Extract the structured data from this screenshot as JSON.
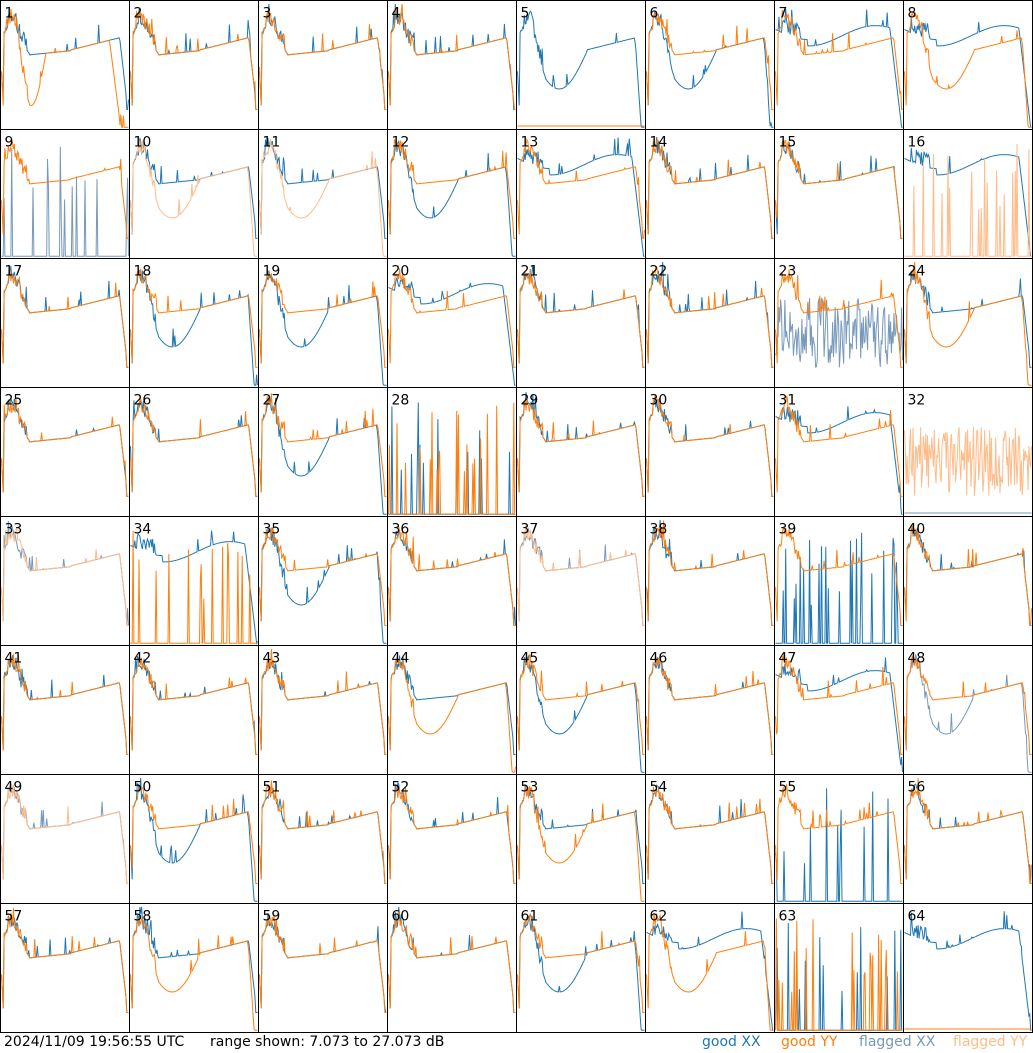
{
  "footer": {
    "timestamp": "2024/11/09 19:56:55 UTC",
    "range": "range shown: 7.073 to 27.073 dB",
    "legend": {
      "good_xx": "good XX",
      "good_yy": "good YY",
      "flagged_xx": "flagged XX",
      "flagged_yy": "flagged YY"
    }
  },
  "colors": {
    "good_xx": "#1f77b4",
    "good_yy": "#ff7f0e",
    "flagged_xx": "#7799bb",
    "flagged_yy": "#ffbb88"
  },
  "chart_data": {
    "type": "line",
    "grid": "8x8 small multiples",
    "range_db": [
      7.073,
      27.073
    ],
    "panels": [
      {
        "id": "1",
        "xx": "good",
        "yy": "good",
        "xx_shape": "normal",
        "yy_shape": "drop"
      },
      {
        "id": "2",
        "xx": "good",
        "yy": "good",
        "xx_shape": "normal",
        "yy_shape": "normal"
      },
      {
        "id": "3",
        "xx": "good",
        "yy": "good",
        "xx_shape": "normal",
        "yy_shape": "normal"
      },
      {
        "id": "4",
        "xx": "good",
        "yy": "good",
        "xx_shape": "normal",
        "yy_shape": "normal"
      },
      {
        "id": "5",
        "xx": "good",
        "yy": "good",
        "xx_shape": "dip",
        "yy_shape": "flat"
      },
      {
        "id": "6",
        "xx": "good",
        "yy": "good",
        "xx_shape": "dip",
        "yy_shape": "normal"
      },
      {
        "id": "7",
        "xx": "good",
        "yy": "good",
        "xx_shape": "high",
        "yy_shape": "normal"
      },
      {
        "id": "8",
        "xx": "good",
        "yy": "good",
        "xx_shape": "high",
        "yy_shape": "dip"
      },
      {
        "id": "9",
        "xx": "flagged",
        "yy": "good",
        "xx_shape": "spiky",
        "yy_shape": "normal"
      },
      {
        "id": "10",
        "xx": "good",
        "yy": "flagged",
        "xx_shape": "normal",
        "yy_shape": "dip"
      },
      {
        "id": "11",
        "xx": "good",
        "yy": "flagged",
        "xx_shape": "normal",
        "yy_shape": "dip"
      },
      {
        "id": "12",
        "xx": "good",
        "yy": "good",
        "xx_shape": "dip",
        "yy_shape": "normal"
      },
      {
        "id": "13",
        "xx": "good",
        "yy": "good",
        "xx_shape": "high",
        "yy_shape": "normal"
      },
      {
        "id": "14",
        "xx": "good",
        "yy": "good",
        "xx_shape": "normal",
        "yy_shape": "normal"
      },
      {
        "id": "15",
        "xx": "good",
        "yy": "good",
        "xx_shape": "normal",
        "yy_shape": "normal"
      },
      {
        "id": "16",
        "xx": "good",
        "yy": "flagged",
        "xx_shape": "high",
        "yy_shape": "spiky"
      },
      {
        "id": "17",
        "xx": "good",
        "yy": "good",
        "xx_shape": "normal",
        "yy_shape": "normal"
      },
      {
        "id": "18",
        "xx": "good",
        "yy": "good",
        "xx_shape": "dip",
        "yy_shape": "normal"
      },
      {
        "id": "19",
        "xx": "good",
        "yy": "good",
        "xx_shape": "dip",
        "yy_shape": "normal"
      },
      {
        "id": "20",
        "xx": "good",
        "yy": "good",
        "xx_shape": "high",
        "yy_shape": "normal"
      },
      {
        "id": "21",
        "xx": "good",
        "yy": "good",
        "xx_shape": "normal",
        "yy_shape": "normal"
      },
      {
        "id": "22",
        "xx": "good",
        "yy": "good",
        "xx_shape": "normal",
        "yy_shape": "normal"
      },
      {
        "id": "23",
        "xx": "flagged",
        "yy": "good",
        "xx_shape": "noisy",
        "yy_shape": "normal"
      },
      {
        "id": "24",
        "xx": "good",
        "yy": "good",
        "xx_shape": "normal",
        "yy_shape": "dip"
      },
      {
        "id": "25",
        "xx": "good",
        "yy": "good",
        "xx_shape": "normal",
        "yy_shape": "normal"
      },
      {
        "id": "26",
        "xx": "good",
        "yy": "good",
        "xx_shape": "normal",
        "yy_shape": "normal"
      },
      {
        "id": "27",
        "xx": "good",
        "yy": "good",
        "xx_shape": "dip",
        "yy_shape": "normal"
      },
      {
        "id": "28",
        "xx": "good",
        "yy": "good",
        "xx_shape": "spiky",
        "yy_shape": "spiky"
      },
      {
        "id": "29",
        "xx": "good",
        "yy": "good",
        "xx_shape": "normal",
        "yy_shape": "normal"
      },
      {
        "id": "30",
        "xx": "good",
        "yy": "good",
        "xx_shape": "normal",
        "yy_shape": "normal"
      },
      {
        "id": "31",
        "xx": "good",
        "yy": "good",
        "xx_shape": "high",
        "yy_shape": "normal"
      },
      {
        "id": "32",
        "xx": "flagged",
        "yy": "flagged",
        "xx_shape": "flat",
        "yy_shape": "noisy"
      },
      {
        "id": "33",
        "xx": "flagged",
        "yy": "flagged",
        "xx_shape": "normal",
        "yy_shape": "normal"
      },
      {
        "id": "34",
        "xx": "good",
        "yy": "good",
        "xx_shape": "high",
        "yy_shape": "spiky"
      },
      {
        "id": "35",
        "xx": "good",
        "yy": "good",
        "xx_shape": "dip",
        "yy_shape": "normal"
      },
      {
        "id": "36",
        "xx": "good",
        "yy": "good",
        "xx_shape": "normal",
        "yy_shape": "normal"
      },
      {
        "id": "37",
        "xx": "flagged",
        "yy": "flagged",
        "xx_shape": "normal",
        "yy_shape": "normal"
      },
      {
        "id": "38",
        "xx": "good",
        "yy": "good",
        "xx_shape": "normal",
        "yy_shape": "normal"
      },
      {
        "id": "39",
        "xx": "good",
        "yy": "good",
        "xx_shape": "spiky",
        "yy_shape": "normal"
      },
      {
        "id": "40",
        "xx": "good",
        "yy": "good",
        "xx_shape": "normal",
        "yy_shape": "normal"
      },
      {
        "id": "41",
        "xx": "good",
        "yy": "good",
        "xx_shape": "normal",
        "yy_shape": "normal"
      },
      {
        "id": "42",
        "xx": "good",
        "yy": "good",
        "xx_shape": "normal",
        "yy_shape": "normal"
      },
      {
        "id": "43",
        "xx": "good",
        "yy": "good",
        "xx_shape": "normal",
        "yy_shape": "normal"
      },
      {
        "id": "44",
        "xx": "good",
        "yy": "good",
        "xx_shape": "normal",
        "yy_shape": "dip"
      },
      {
        "id": "45",
        "xx": "good",
        "yy": "good",
        "xx_shape": "dip",
        "yy_shape": "normal"
      },
      {
        "id": "46",
        "xx": "good",
        "yy": "good",
        "xx_shape": "normal",
        "yy_shape": "normal"
      },
      {
        "id": "47",
        "xx": "good",
        "yy": "good",
        "xx_shape": "high",
        "yy_shape": "normal"
      },
      {
        "id": "48",
        "xx": "flagged",
        "yy": "good",
        "xx_shape": "dip",
        "yy_shape": "normal"
      },
      {
        "id": "49",
        "xx": "flagged",
        "yy": "flagged",
        "xx_shape": "normal",
        "yy_shape": "normal"
      },
      {
        "id": "50",
        "xx": "good",
        "yy": "good",
        "xx_shape": "dip",
        "yy_shape": "normal"
      },
      {
        "id": "51",
        "xx": "good",
        "yy": "good",
        "xx_shape": "normal",
        "yy_shape": "normal"
      },
      {
        "id": "52",
        "xx": "good",
        "yy": "good",
        "xx_shape": "normal",
        "yy_shape": "normal"
      },
      {
        "id": "53",
        "xx": "good",
        "yy": "good",
        "xx_shape": "normal",
        "yy_shape": "dip"
      },
      {
        "id": "54",
        "xx": "good",
        "yy": "good",
        "xx_shape": "normal",
        "yy_shape": "normal"
      },
      {
        "id": "55",
        "xx": "good",
        "yy": "good",
        "xx_shape": "spiky",
        "yy_shape": "normal"
      },
      {
        "id": "56",
        "xx": "good",
        "yy": "good",
        "xx_shape": "normal",
        "yy_shape": "normal"
      },
      {
        "id": "57",
        "xx": "good",
        "yy": "good",
        "xx_shape": "normal",
        "yy_shape": "normal"
      },
      {
        "id": "58",
        "xx": "good",
        "yy": "good",
        "xx_shape": "normal",
        "yy_shape": "dip"
      },
      {
        "id": "59",
        "xx": "good",
        "yy": "good",
        "xx_shape": "normal",
        "yy_shape": "normal"
      },
      {
        "id": "60",
        "xx": "good",
        "yy": "good",
        "xx_shape": "normal",
        "yy_shape": "normal"
      },
      {
        "id": "61",
        "xx": "good",
        "yy": "good",
        "xx_shape": "dip",
        "yy_shape": "normal"
      },
      {
        "id": "62",
        "xx": "good",
        "yy": "good",
        "xx_shape": "high",
        "yy_shape": "dip"
      },
      {
        "id": "63",
        "xx": "good",
        "yy": "good",
        "xx_shape": "spiky",
        "yy_shape": "spiky"
      },
      {
        "id": "64",
        "xx": "good",
        "yy": "good",
        "xx_shape": "high",
        "yy_shape": "flat"
      }
    ]
  }
}
